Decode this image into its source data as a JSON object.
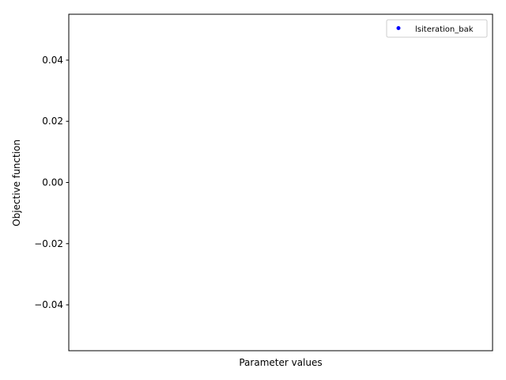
{
  "chart_data": {
    "type": "scatter",
    "title": "",
    "xlabel": "Parameter values",
    "ylabel": "Objective function",
    "ylim": [
      -0.055,
      0.055
    ],
    "yticks": [
      {
        "value": 0.04,
        "label": "0.04"
      },
      {
        "value": 0.02,
        "label": "0.02"
      },
      {
        "value": 0.0,
        "label": "0.00"
      },
      {
        "value": -0.02,
        "label": "−0.02"
      },
      {
        "value": -0.04,
        "label": "−0.04"
      }
    ],
    "xticks": [],
    "grid": false,
    "legend_position": "top-right",
    "series": [
      {
        "name": "lsiteration_bak",
        "marker": "dot",
        "color": "#0000ff",
        "x": [],
        "y": []
      }
    ]
  }
}
